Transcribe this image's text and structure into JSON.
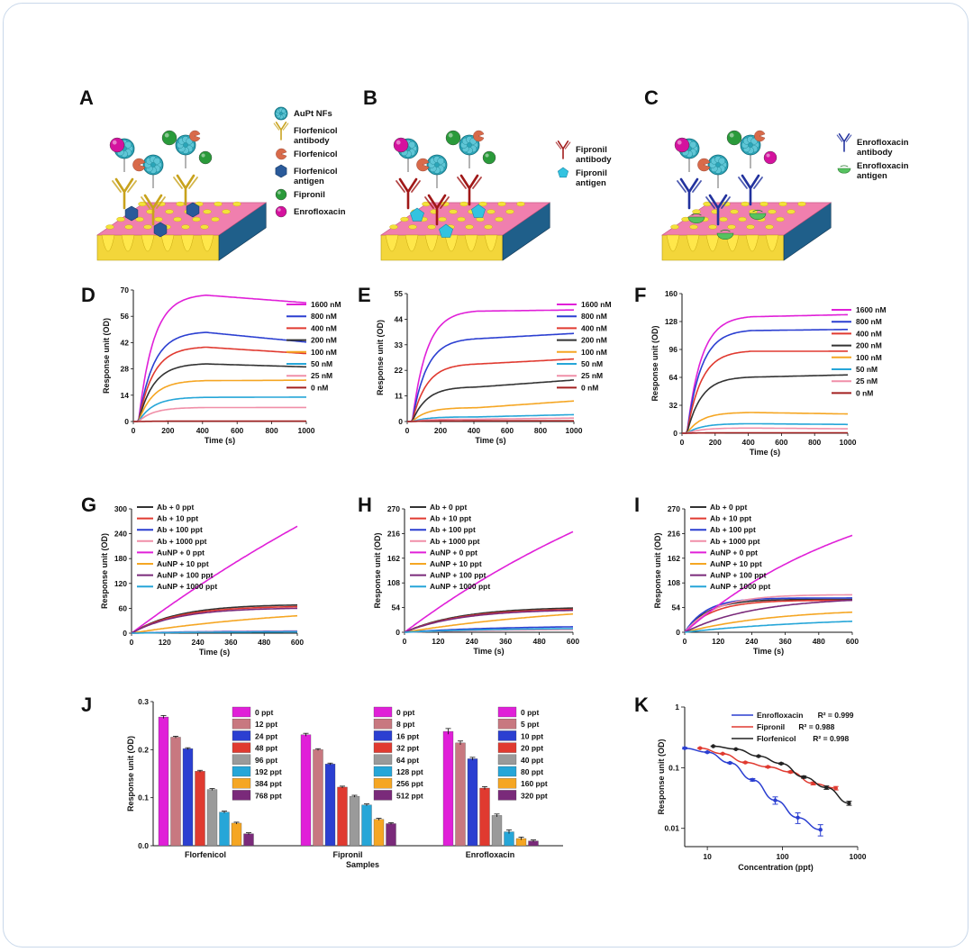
{
  "colors": {
    "frame": "#c9d8ea",
    "chip_pink": "#f07fae",
    "chip_yellow": "#f3e23a",
    "chip_blue": "#1f5f8a",
    "nf": "#2aa5b8",
    "magenta": "#d4129e",
    "green": "#2a9a3a",
    "gold_ab": "#c8a21c",
    "red_ab": "#a01818",
    "blue_ab": "#22329e",
    "flor_red": "#d86a4a",
    "hex_blue": "#2a5a9a",
    "pent_cyan": "#33c3e0",
    "enro_green": "#56c260"
  },
  "schematic": {
    "A": {
      "letter": "A",
      "legend": [
        {
          "icon": "aupt-nf",
          "lines": [
            "AuPt NFs"
          ]
        },
        {
          "icon": "florfenicol-antibody",
          "lines": [
            "Florfenicol",
            "antibody"
          ]
        },
        {
          "icon": "florfenicol",
          "lines": [
            "Florfenicol"
          ]
        },
        {
          "icon": "florfenicol-antigen",
          "lines": [
            "Florfenicol",
            "antigen"
          ]
        },
        {
          "icon": "fipronil",
          "lines": [
            "Fipronil"
          ]
        },
        {
          "icon": "enrofloxacin",
          "lines": [
            "Enrofloxacin"
          ]
        }
      ]
    },
    "B": {
      "letter": "B",
      "legend": [
        {
          "icon": "fipronil-antibody",
          "lines": [
            "Fipronil",
            "antibody"
          ]
        },
        {
          "icon": "fipronil-antigen",
          "lines": [
            "Fipronil",
            "antigen"
          ]
        }
      ]
    },
    "C": {
      "letter": "C",
      "legend": [
        {
          "icon": "enrofloxacin-antibody",
          "lines": [
            "Enrofloxacin",
            "antibody"
          ]
        },
        {
          "icon": "enrofloxacin-antigen",
          "lines": [
            "Enrofloxacin",
            "antigen"
          ]
        }
      ]
    }
  },
  "chart_data": [
    {
      "panel": "D",
      "type": "line",
      "xlabel": "Time (s)",
      "ylabel": "Response unit (OD)",
      "xlim": [
        0,
        1000
      ],
      "ylim": [
        0,
        70
      ],
      "xticks": [
        0,
        200,
        400,
        600,
        800,
        1000
      ],
      "yticks": [
        0,
        14,
        28,
        42,
        56,
        70
      ],
      "assoc_end": 420,
      "model": "kinetic",
      "series": [
        {
          "name": "1600 nM",
          "color": "#e020d8",
          "plateau": 68,
          "end": 63
        },
        {
          "name": "800 nM",
          "color": "#2b3fd1",
          "plateau": 48,
          "end": 42
        },
        {
          "name": "400 nM",
          "color": "#e03a30",
          "plateau": 40,
          "end": 36
        },
        {
          "name": "200 nM",
          "color": "#333333",
          "plateau": 31,
          "end": 29
        },
        {
          "name": "100 nM",
          "color": "#f5a623",
          "plateau": 22,
          "end": 22
        },
        {
          "name": "50 nM",
          "color": "#26a6d8",
          "plateau": 13,
          "end": 13
        },
        {
          "name": "25 nM",
          "color": "#f08fa8",
          "plateau": 7.5,
          "end": 7.5
        },
        {
          "name": "0 nM",
          "color": "#a32020",
          "plateau": 0.2,
          "end": 0.2
        }
      ]
    },
    {
      "panel": "E",
      "type": "line",
      "xlabel": "Time (s)",
      "ylabel": "Response unit (OD)",
      "xlim": [
        0,
        1000
      ],
      "ylim": [
        0,
        55
      ],
      "xticks": [
        0,
        200,
        400,
        600,
        800,
        1000
      ],
      "yticks": [
        0,
        11,
        22,
        33,
        44,
        55
      ],
      "assoc_end": 420,
      "model": "kinetic",
      "series": [
        {
          "name": "1600 nM",
          "color": "#e020d8",
          "plateau": 48,
          "end": 48
        },
        {
          "name": "800 nM",
          "color": "#2b3fd1",
          "plateau": 36,
          "end": 38
        },
        {
          "name": "400 nM",
          "color": "#e03a30",
          "plateau": 25,
          "end": 27
        },
        {
          "name": "200 nM",
          "color": "#333333",
          "plateau": 15,
          "end": 18
        },
        {
          "name": "100 nM",
          "color": "#f5a623",
          "plateau": 6,
          "end": 9
        },
        {
          "name": "50 nM",
          "color": "#26a6d8",
          "plateau": 2,
          "end": 3
        },
        {
          "name": "25 nM",
          "color": "#f08fa8",
          "plateau": 1,
          "end": 1.5
        },
        {
          "name": "0 nM",
          "color": "#a32020",
          "plateau": 0.3,
          "end": 0.3
        }
      ]
    },
    {
      "panel": "F",
      "type": "line",
      "xlabel": "Time (s)",
      "ylabel": "Response unit (OD)",
      "xlim": [
        0,
        1000
      ],
      "ylim": [
        0,
        160
      ],
      "xticks": [
        0,
        200,
        400,
        600,
        800,
        1000
      ],
      "yticks": [
        0,
        32,
        64,
        96,
        128,
        160
      ],
      "assoc_end": 420,
      "model": "kinetic",
      "series": [
        {
          "name": "1600 nM",
          "color": "#e020d8",
          "plateau": 135,
          "end": 136
        },
        {
          "name": "800 nM",
          "color": "#2b3fd1",
          "plateau": 119,
          "end": 119
        },
        {
          "name": "400 nM",
          "color": "#e03a30",
          "plateau": 95,
          "end": 94
        },
        {
          "name": "200 nM",
          "color": "#333333",
          "plateau": 65,
          "end": 67
        },
        {
          "name": "100 nM",
          "color": "#f5a623",
          "plateau": 24,
          "end": 22
        },
        {
          "name": "50 nM",
          "color": "#26a6d8",
          "plateau": 11,
          "end": 10
        },
        {
          "name": "25 nM",
          "color": "#f08fa8",
          "plateau": 6,
          "end": 5
        },
        {
          "name": "0 nM",
          "color": "#a32020",
          "plateau": 0.5,
          "end": 0.5
        }
      ]
    },
    {
      "panel": "G",
      "type": "line",
      "xlabel": "Time (s)",
      "ylabel": "Response unit (OD)",
      "xlim": [
        0,
        600
      ],
      "ylim": [
        0,
        300
      ],
      "xticks": [
        0,
        120,
        240,
        360,
        480,
        600
      ],
      "yticks": [
        0,
        60,
        120,
        180,
        240,
        300
      ],
      "model": "association",
      "series": [
        {
          "name": "Ab + 0 ppt",
          "color": "#333333",
          "end": 68,
          "rate": 0.006
        },
        {
          "name": "Ab + 10 ppt",
          "color": "#e03a30",
          "end": 64,
          "rate": 0.006
        },
        {
          "name": "Ab + 100 ppt",
          "color": "#2b3fd1",
          "end": 5,
          "rate": 0.004
        },
        {
          "name": "Ab + 1000 ppt",
          "color": "#f08fa8",
          "end": 4,
          "rate": 0.004
        },
        {
          "name": "AuNP + 0 ppt",
          "color": "#e020d8",
          "end": 258,
          "rate": 0.0005
        },
        {
          "name": "AuNP + 10 ppt",
          "color": "#f5a623",
          "end": 42,
          "rate": 0.0015
        },
        {
          "name": "AuNP + 100 ppt",
          "color": "#7a2a7a",
          "end": 60,
          "rate": 0.006
        },
        {
          "name": "AuNP + 1000 ppt",
          "color": "#26a6d8",
          "end": 3,
          "rate": 0.004
        }
      ]
    },
    {
      "panel": "H",
      "type": "line",
      "xlabel": "Time (s)",
      "ylabel": "Response unit (OD)",
      "xlim": [
        0,
        600
      ],
      "ylim": [
        0,
        270
      ],
      "xticks": [
        0,
        120,
        240,
        360,
        480,
        600
      ],
      "yticks": [
        0,
        54,
        108,
        162,
        216,
        270
      ],
      "model": "association",
      "series": [
        {
          "name": "Ab + 0 ppt",
          "color": "#333333",
          "end": 53,
          "rate": 0.005
        },
        {
          "name": "Ab + 10 ppt",
          "color": "#e03a30",
          "end": 50,
          "rate": 0.005
        },
        {
          "name": "Ab + 100 ppt",
          "color": "#2b3fd1",
          "end": 12,
          "rate": 0.003
        },
        {
          "name": "Ab + 1000 ppt",
          "color": "#f08fa8",
          "end": 6,
          "rate": 0.003
        },
        {
          "name": "AuNP + 0 ppt",
          "color": "#e020d8",
          "end": 220,
          "rate": 0.0008
        },
        {
          "name": "AuNP + 10 ppt",
          "color": "#f5a623",
          "end": 40,
          "rate": 0.0015
        },
        {
          "name": "AuNP + 100 ppt",
          "color": "#7a2a7a",
          "end": 48,
          "rate": 0.005
        },
        {
          "name": "AuNP + 1000 ppt",
          "color": "#26a6d8",
          "end": 8,
          "rate": 0.003
        }
      ]
    },
    {
      "panel": "I",
      "type": "line",
      "xlabel": "Time (s)",
      "ylabel": "Response unit (OD)",
      "xlim": [
        0,
        600
      ],
      "ylim": [
        0,
        270
      ],
      "xticks": [
        0,
        120,
        240,
        360,
        480,
        600
      ],
      "yticks": [
        0,
        54,
        108,
        162,
        216,
        270
      ],
      "model": "association",
      "series": [
        {
          "name": "Ab + 0 ppt",
          "color": "#333333",
          "end": 72,
          "rate": 0.012
        },
        {
          "name": "Ab + 10 ppt",
          "color": "#e03a30",
          "end": 70,
          "rate": 0.01
        },
        {
          "name": "Ab + 100 ppt",
          "color": "#2b3fd1",
          "end": 75,
          "rate": 0.013
        },
        {
          "name": "Ab + 1000 ppt",
          "color": "#f08fa8",
          "end": 82,
          "rate": 0.009
        },
        {
          "name": "AuNP + 0 ppt",
          "color": "#e020d8",
          "end": 212,
          "rate": 0.0015
        },
        {
          "name": "AuNP + 10 ppt",
          "color": "#f5a623",
          "end": 44,
          "rate": 0.003
        },
        {
          "name": "AuNP + 100 ppt",
          "color": "#7a2a7a",
          "end": 70,
          "rate": 0.004
        },
        {
          "name": "AuNP + 1000 ppt",
          "color": "#26a6d8",
          "end": 24,
          "rate": 0.002
        }
      ]
    },
    {
      "panel": "J",
      "type": "bar",
      "xlabel": "Samples",
      "ylabel": "Response unit (OD)",
      "ylim": [
        0,
        0.3
      ],
      "yticks": [
        0.0,
        0.1,
        0.2,
        0.3
      ],
      "bar_colors": [
        "#e020d8",
        "#c87880",
        "#2b3fd1",
        "#e03a30",
        "#9a9a9a",
        "#26a6d8",
        "#f5a623",
        "#7a2a7a"
      ],
      "groups": [
        {
          "name": "Florfenicol",
          "labels": [
            "0 ppt",
            "12 ppt",
            "24 ppt",
            "48 ppt",
            "96 ppt",
            "192 ppt",
            "384 ppt",
            "768 ppt"
          ],
          "values": [
            0.268,
            0.226,
            0.202,
            0.155,
            0.117,
            0.07,
            0.047,
            0.025
          ],
          "errors": [
            0.003,
            0.002,
            0.002,
            0.002,
            0.002,
            0.002,
            0.002,
            0.002
          ]
        },
        {
          "name": "Fipronil",
          "labels": [
            "0 ppt",
            "8 ppt",
            "16 ppt",
            "32 ppt",
            "64 ppt",
            "128 ppt",
            "256 ppt",
            "512 ppt"
          ],
          "values": [
            0.231,
            0.2,
            0.17,
            0.122,
            0.103,
            0.085,
            0.055,
            0.046
          ],
          "errors": [
            0.003,
            0.002,
            0.002,
            0.002,
            0.002,
            0.002,
            0.002,
            0.002
          ]
        },
        {
          "name": "Enrofloxacin",
          "labels": [
            "0 ppt",
            "5 ppt",
            "10 ppt",
            "20 ppt",
            "40 ppt",
            "80 ppt",
            "160 ppt",
            "320 ppt"
          ],
          "values": [
            0.238,
            0.214,
            0.181,
            0.12,
            0.063,
            0.029,
            0.015,
            0.01
          ],
          "errors": [
            0.006,
            0.004,
            0.003,
            0.003,
            0.003,
            0.004,
            0.003,
            0.002
          ]
        }
      ]
    },
    {
      "panel": "K",
      "type": "scatter",
      "xscale": "log",
      "yscale": "log",
      "xlabel": "Concentration (ppt)",
      "ylabel": "Response unit (OD)",
      "xlim": [
        5,
        1000
      ],
      "ylim": [
        0.005,
        1
      ],
      "xticks": [
        10,
        100,
        1000
      ],
      "xticklabels": [
        "10",
        "100",
        "1000"
      ],
      "yticks": [
        0.01,
        0.1,
        1
      ],
      "yticklabels": [
        "0.01",
        "0.1",
        "1"
      ],
      "series": [
        {
          "name": "Enrofloxacin",
          "r2": "R² = 0.999",
          "color": "#2b3fd1",
          "x": [
            5,
            10,
            20,
            40,
            80,
            160,
            320
          ],
          "y": [
            0.21,
            0.18,
            0.12,
            0.063,
            0.029,
            0.015,
            0.0095
          ],
          "err": [
            0.006,
            0.004,
            0.003,
            0.003,
            0.004,
            0.003,
            0.002
          ]
        },
        {
          "name": "Fipronil",
          "r2": "R² = 0.988",
          "color": "#e03a30",
          "x": [
            8,
            16,
            32,
            64,
            128,
            256,
            512
          ],
          "y": [
            0.21,
            0.17,
            0.122,
            0.103,
            0.085,
            0.055,
            0.046
          ],
          "err": [
            0.003,
            0.003,
            0.003,
            0.003,
            0.003,
            0.003,
            0.003
          ]
        },
        {
          "name": "Florfenicol",
          "r2": "R² = 0.998",
          "color": "#222222",
          "x": [
            12,
            24,
            48,
            96,
            192,
            384,
            768
          ],
          "y": [
            0.226,
            0.202,
            0.155,
            0.117,
            0.07,
            0.047,
            0.026
          ],
          "err": [
            0.003,
            0.003,
            0.003,
            0.003,
            0.003,
            0.003,
            0.002
          ]
        }
      ]
    }
  ]
}
